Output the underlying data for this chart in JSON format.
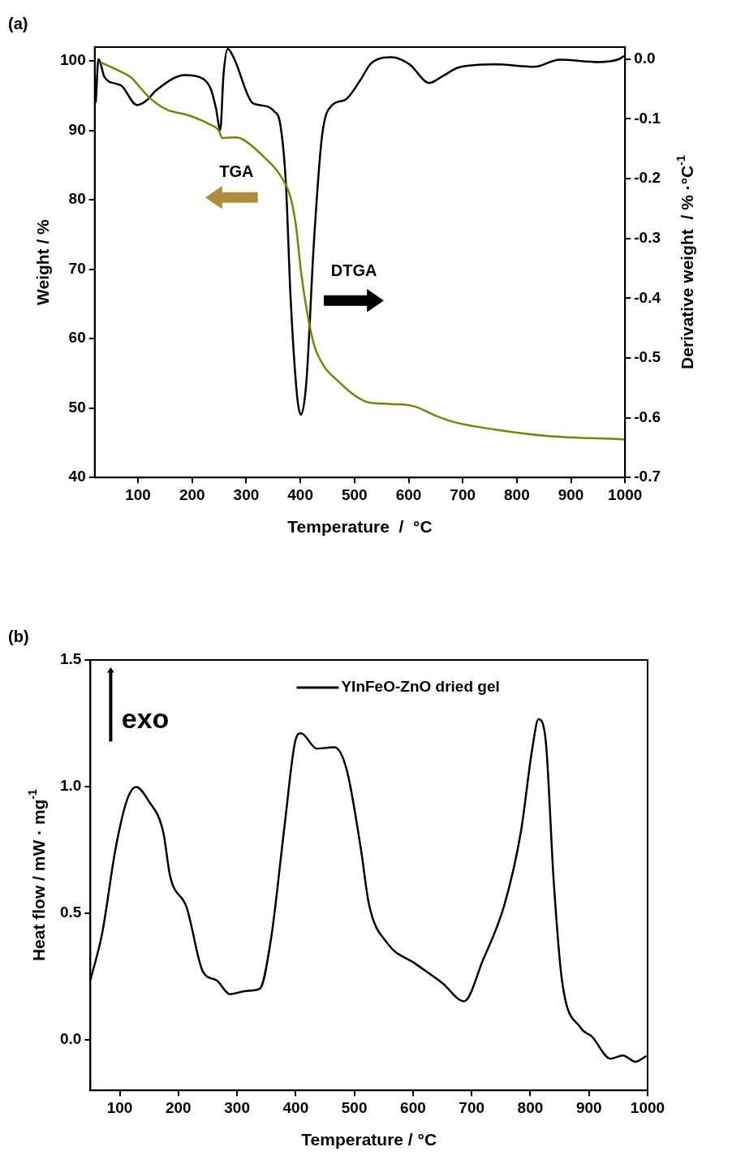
{
  "chart_data": [
    {
      "type": "line",
      "title": "(a)",
      "xlabel": "Temperature  /  °C",
      "ylabel": "Weight / %",
      "y2label": "Derivative weight  / % ·°C$^{-1}$",
      "annotations": [
        "TGA",
        "DTGA"
      ],
      "xlim": [
        20,
        1000
      ],
      "xticks": [
        100,
        200,
        300,
        400,
        500,
        600,
        700,
        800,
        900,
        1000
      ],
      "ylim": [
        40,
        102
      ],
      "yticks": [
        40,
        50,
        60,
        70,
        80,
        90,
        100
      ],
      "y2lim": [
        -0.7,
        0.02
      ],
      "y2ticks": [
        {
          "value": 0,
          "label": "0.0"
        },
        -0.1,
        -0.2,
        -0.3,
        -0.4,
        -0.5,
        -0.6,
        -0.7
      ],
      "grid": false,
      "marker": "none",
      "line_style": "solid",
      "series": [
        {
          "color": "#808000",
          "x": [
            31,
            67,
            86,
            120,
            153,
            192,
            229,
            249,
            256,
            282,
            296,
            335,
            363,
            382,
            392,
            401,
            411,
            425,
            444,
            468,
            497,
            526,
            593,
            616,
            650,
            688,
            760,
            855,
            998
          ],
          "values": [
            99.8,
            98.5,
            97.7,
            94.8,
            93.0,
            92.2,
            91.0,
            90.0,
            88.9,
            89.0,
            88.6,
            86.0,
            83.5,
            80.3,
            76.2,
            69.8,
            64.5,
            59.2,
            56.0,
            54.0,
            52.0,
            50.8,
            50.5,
            50.1,
            48.9,
            47.9,
            46.9,
            46.0,
            45.5
          ]
        },
        {
          "color": "#000000",
          "axis": "y2",
          "x": [
            22,
            27,
            38,
            62,
            70,
            98,
            115,
            134,
            187,
            220,
            234,
            244,
            252,
            258,
            266,
            277,
            311,
            325,
            351,
            363,
            373,
            382,
            394,
            401,
            411,
            425,
            440,
            459,
            483,
            511,
            531,
            569,
            602,
            638,
            664,
            693,
            760,
            832,
            879,
            951,
            989,
            998
          ],
          "values": [
            -0.073,
            0.0,
            -0.03,
            -0.042,
            -0.045,
            -0.077,
            -0.07,
            -0.052,
            -0.027,
            -0.033,
            -0.049,
            -0.082,
            -0.119,
            -0.026,
            0.017,
            0.002,
            -0.073,
            -0.077,
            -0.087,
            -0.11,
            -0.204,
            -0.4,
            -0.564,
            -0.595,
            -0.541,
            -0.307,
            -0.129,
            -0.077,
            -0.068,
            -0.035,
            -0.007,
            0.003,
            -0.009,
            -0.04,
            -0.028,
            -0.014,
            -0.009,
            -0.013,
            -0.001,
            -0.005,
            0.0,
            0.005
          ]
        }
      ]
    },
    {
      "type": "line",
      "title": "(b)",
      "xlabel": "Temperature / °C",
      "ylabel": "Heat flow / mW · mg$^{-1}$",
      "annotations": [
        "exo"
      ],
      "xlim": [
        50,
        1000
      ],
      "xticks": [
        100,
        200,
        300,
        400,
        500,
        600,
        700,
        800,
        900,
        1000
      ],
      "ylim": [
        -0.2,
        1.5
      ],
      "yticks": [
        {
          "value": 0,
          "label": "0.0"
        },
        0.5,
        {
          "value": 1,
          "label": "1.0"
        },
        1.5
      ],
      "grid": false,
      "marker": "none",
      "line_style": "solid",
      "legend": "top",
      "series": [
        {
          "name": "YInFeO-ZnO dried gel",
          "color": "#000000",
          "x": [
            50,
            70,
            93,
            112,
            128,
            149,
            174,
            186,
            214,
            242,
            265,
            288,
            316,
            339,
            358,
            381,
            399,
            409,
            436,
            466,
            487,
            511,
            525,
            557,
            603,
            650,
            687,
            719,
            756,
            784,
            803,
            814,
            826,
            840,
            854,
            886,
            905,
            937,
            958,
            979,
            998
          ],
          "values": [
            0.235,
            0.42,
            0.756,
            0.944,
            0.998,
            0.944,
            0.822,
            0.645,
            0.523,
            0.268,
            0.235,
            0.18,
            0.193,
            0.202,
            0.4,
            0.845,
            1.177,
            1.211,
            1.15,
            1.155,
            1.066,
            0.756,
            0.534,
            0.379,
            0.302,
            0.224,
            0.152,
            0.313,
            0.534,
            0.822,
            1.144,
            1.266,
            1.188,
            0.623,
            0.235,
            0.047,
            0.013,
            -0.075,
            -0.062,
            -0.087,
            -0.064
          ]
        }
      ]
    }
  ]
}
